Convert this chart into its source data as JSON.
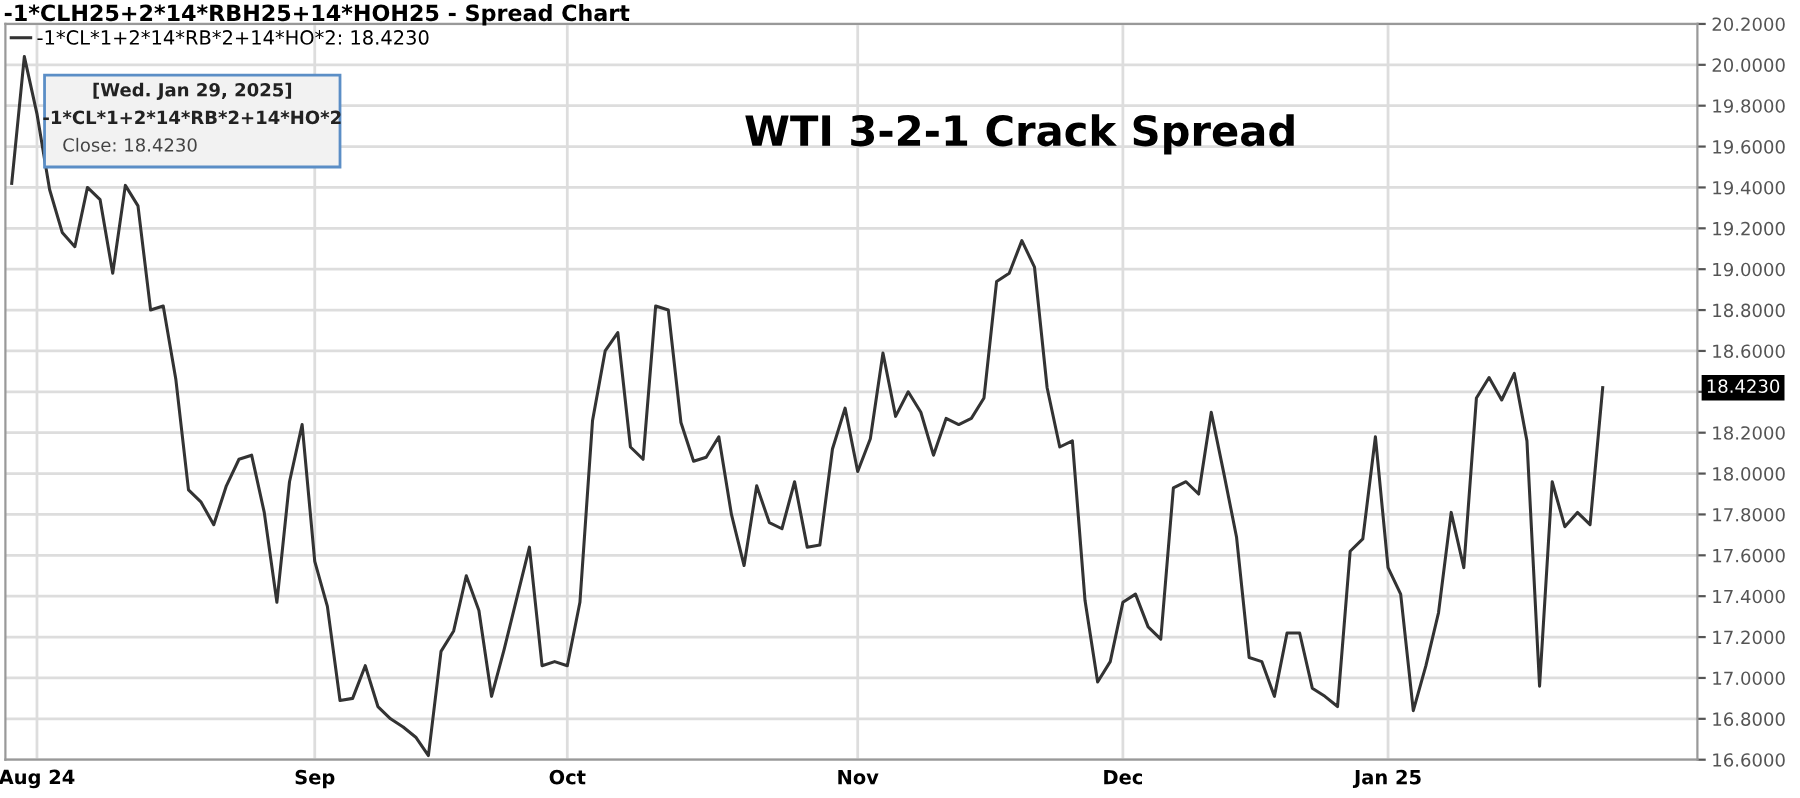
{
  "chart_data": {
    "type": "line",
    "title": "-1*CLH25+2*14*RBH25+14*HOH25 - Spread Chart",
    "subtitle": "WTI 3-2-1 Crack Spread",
    "categories": [
      null,
      null,
      "Aug 24",
      null,
      null,
      null,
      null,
      null,
      null,
      null,
      null,
      null,
      null,
      null,
      null,
      null,
      null,
      null,
      null,
      null,
      null,
      null,
      null,
      null,
      "Sep",
      null,
      null,
      null,
      null,
      null,
      null,
      null,
      null,
      null,
      null,
      null,
      null,
      null,
      null,
      null,
      null,
      null,
      null,
      null,
      "Oct",
      null,
      null,
      null,
      null,
      null,
      null,
      null,
      null,
      null,
      null,
      null,
      null,
      null,
      null,
      null,
      null,
      null,
      null,
      null,
      null,
      null,
      null,
      "Nov",
      null,
      null,
      null,
      null,
      null,
      null,
      null,
      null,
      null,
      null,
      null,
      null,
      null,
      null,
      null,
      null,
      null,
      null,
      null,
      null,
      "Dec",
      null,
      null,
      null,
      null,
      null,
      null,
      null,
      null,
      null,
      null,
      null,
      null,
      null,
      null,
      null,
      null,
      null,
      null,
      null,
      null,
      "Jan 25",
      null,
      null,
      null,
      null,
      null,
      null,
      null,
      null,
      null,
      null,
      null,
      null,
      null,
      null,
      null,
      null,
      null
    ],
    "series": [
      {
        "name": "-1*CL*1+2*14*RB*2+14*HO*2: 18.4230",
        "color": "#333333",
        "values": [
          19.42,
          20.04,
          19.76,
          19.39,
          19.18,
          19.11,
          19.4,
          19.34,
          18.98,
          19.41,
          19.31,
          18.8,
          18.82,
          18.46,
          17.92,
          17.86,
          17.75,
          17.94,
          18.07,
          18.09,
          17.81,
          17.37,
          17.96,
          18.24,
          17.57,
          17.35,
          16.89,
          16.9,
          17.06,
          16.86,
          16.8,
          16.76,
          16.71,
          16.62,
          17.13,
          17.23,
          17.5,
          17.33,
          16.91,
          17.14,
          17.39,
          17.64,
          17.06,
          17.08,
          17.06,
          17.37,
          18.26,
          18.6,
          18.69,
          18.13,
          18.07,
          18.82,
          18.8,
          18.25,
          18.06,
          18.08,
          18.18,
          17.8,
          17.55,
          17.94,
          17.76,
          17.73,
          17.96,
          17.64,
          17.65,
          18.12,
          18.32,
          18.01,
          18.17,
          18.59,
          18.28,
          18.4,
          18.3,
          18.09,
          18.27,
          18.24,
          18.27,
          18.37,
          18.94,
          18.98,
          19.14,
          19.01,
          18.42,
          18.13,
          18.16,
          17.38,
          16.98,
          17.08,
          17.37,
          17.41,
          17.25,
          17.19,
          17.93,
          17.96,
          17.9,
          18.3,
          18.0,
          17.69,
          17.1,
          17.08,
          16.91,
          17.22,
          17.22,
          16.95,
          16.91,
          16.86,
          17.62,
          17.68,
          18.18,
          17.54,
          17.41,
          16.84,
          17.06,
          17.32,
          17.81,
          17.54,
          18.37,
          18.47,
          18.36,
          18.49,
          18.16,
          16.96,
          17.96,
          17.74,
          17.81,
          17.75,
          18.42
        ]
      }
    ],
    "ylim": [
      16.6,
      20.2
    ],
    "yticks": [
      {
        "value": 16.6,
        "label": "16.6000"
      },
      {
        "value": 16.8,
        "label": "16.8000"
      },
      {
        "value": 17.0,
        "label": "17.0000"
      },
      {
        "value": 17.2,
        "label": "17.2000"
      },
      {
        "value": 17.4,
        "label": "17.4000"
      },
      {
        "value": 17.6,
        "label": "17.6000"
      },
      {
        "value": 17.8,
        "label": "17.8000"
      },
      {
        "value": 18.0,
        "label": "18.0000"
      },
      {
        "value": 18.2,
        "label": "18.2000"
      },
      {
        "value": 18.4,
        "label": null
      },
      {
        "value": 18.6,
        "label": "18.6000"
      },
      {
        "value": 18.8,
        "label": "18.8000"
      },
      {
        "value": 19.0,
        "label": "19.0000"
      },
      {
        "value": 19.2,
        "label": "19.2000"
      },
      {
        "value": 19.4,
        "label": "19.4000"
      },
      {
        "value": 19.6,
        "label": "19.6000"
      },
      {
        "value": 19.8,
        "label": "19.8000"
      },
      {
        "value": 20.0,
        "label": "20.0000"
      },
      {
        "value": 20.2,
        "label": "20.2000"
      }
    ],
    "annotations": [
      "[Wed. Jan 29, 2025]",
      "-1*CL*1+2*14*RB*2+14*HO*2",
      "Close: 18.4230",
      "18.4230"
    ],
    "grid": true,
    "legend": "top left",
    "marker": "none",
    "line_style": "solid"
  }
}
